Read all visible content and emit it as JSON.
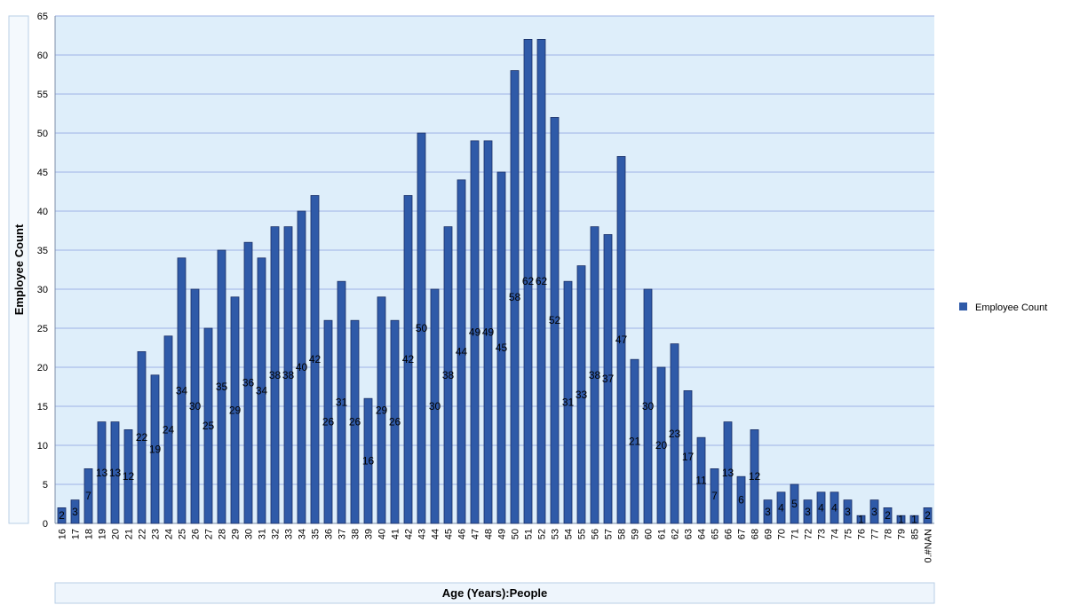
{
  "chart_data": {
    "type": "bar",
    "x_label": "Age (Years):People",
    "y_label": "Employee Count",
    "categories": [
      "16",
      "17",
      "18",
      "19",
      "20",
      "21",
      "22",
      "23",
      "24",
      "25",
      "26",
      "27",
      "28",
      "29",
      "30",
      "31",
      "32",
      "33",
      "34",
      "35",
      "36",
      "37",
      "38",
      "39",
      "40",
      "41",
      "42",
      "43",
      "44",
      "45",
      "46",
      "47",
      "48",
      "49",
      "50",
      "51",
      "52",
      "53",
      "54",
      "55",
      "56",
      "57",
      "58",
      "59",
      "60",
      "61",
      "62",
      "63",
      "64",
      "65",
      "66",
      "67",
      "68",
      "69",
      "70",
      "71",
      "72",
      "73",
      "74",
      "75",
      "76",
      "77",
      "78",
      "79",
      "85",
      "0.#NAN"
    ],
    "series": [
      {
        "name": "Employee Count",
        "color": "#2f5aa8",
        "values": [
          2,
          3,
          7,
          13,
          13,
          12,
          22,
          19,
          24,
          34,
          30,
          25,
          35,
          29,
          36,
          34,
          38,
          38,
          40,
          42,
          26,
          31,
          26,
          16,
          29,
          26,
          42,
          50,
          30,
          38,
          44,
          49,
          49,
          45,
          58,
          62,
          62,
          52,
          31,
          33,
          38,
          37,
          47,
          21,
          30,
          20,
          23,
          17,
          11,
          7,
          13,
          6,
          12,
          3,
          4,
          5,
          3,
          4,
          4,
          3,
          1,
          3,
          2,
          1,
          1,
          2
        ]
      }
    ],
    "ylim": [
      0,
      65
    ],
    "yticks": [
      0,
      5,
      10,
      15,
      20,
      25,
      30,
      35,
      40,
      45,
      50,
      55,
      60,
      65
    ],
    "grid": true,
    "legend": "right",
    "data_labels": true
  }
}
